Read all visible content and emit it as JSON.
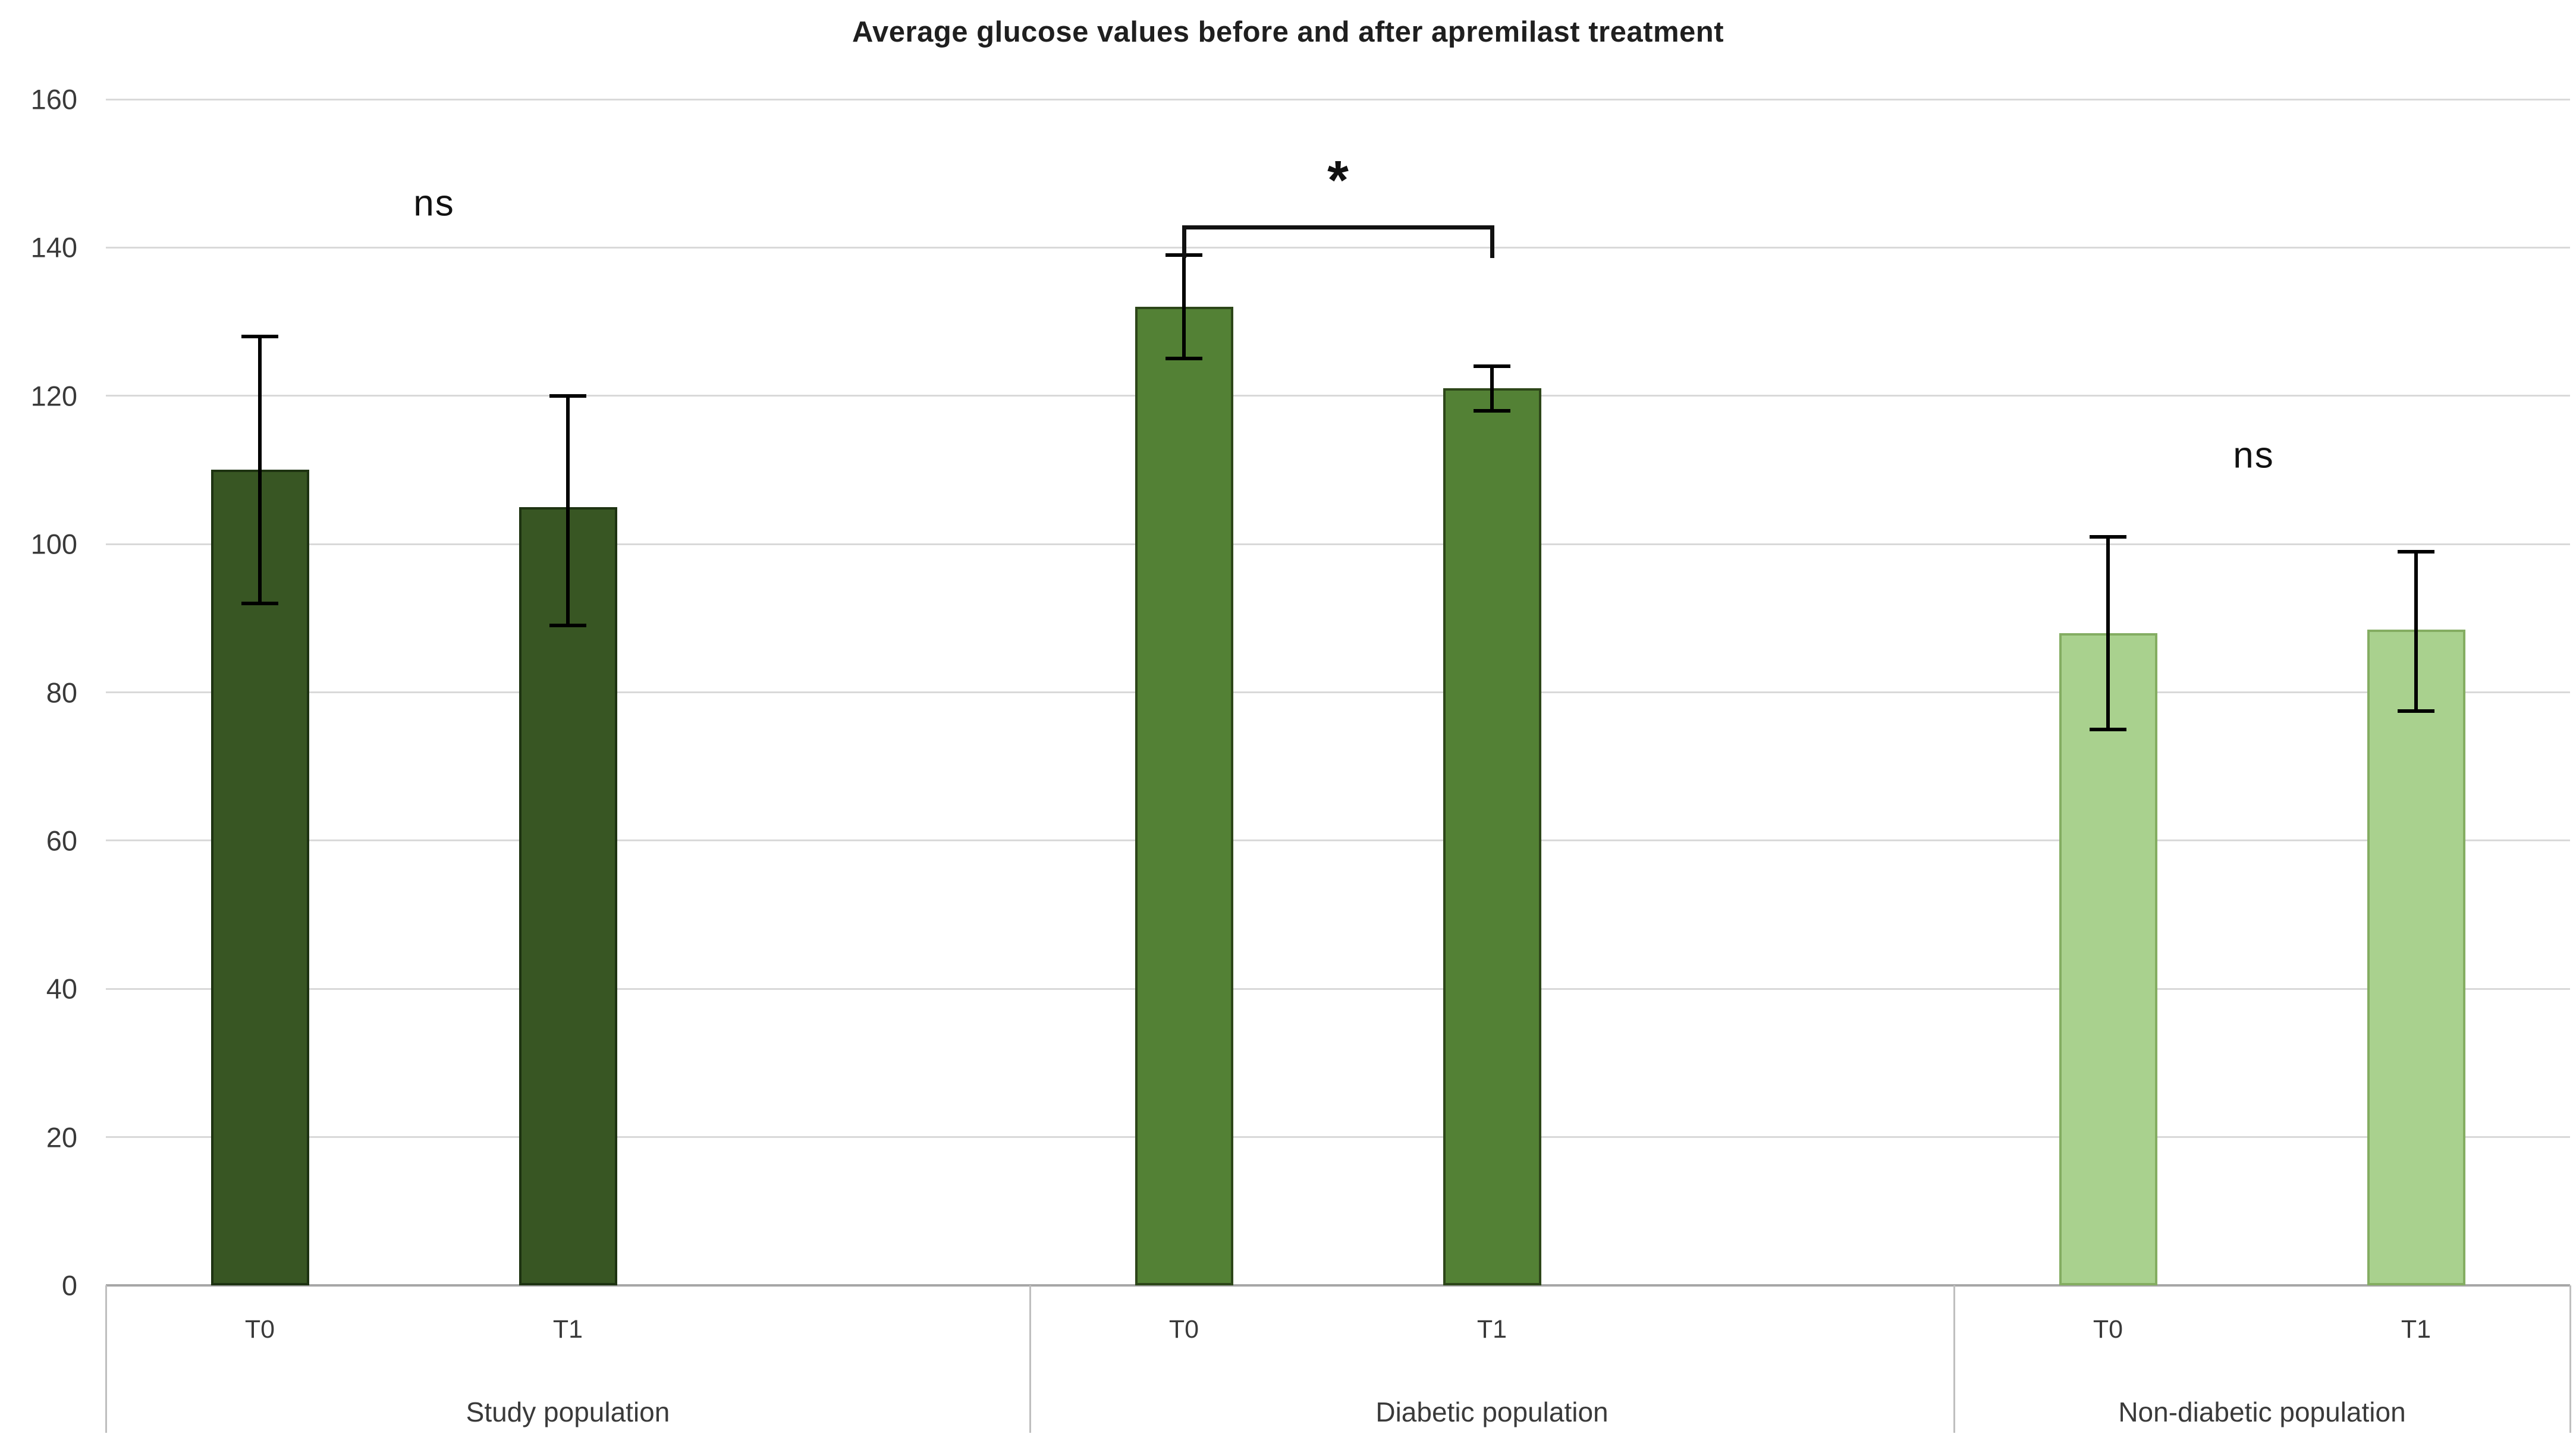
{
  "title": "Average glucose values before and after apremilast treatment",
  "chart_data": {
    "type": "bar",
    "title": "Average glucose values before and after apremilast treatment",
    "ylim": [
      0,
      160
    ],
    "ytick_interval": 20,
    "ytick_labels": [
      "160",
      "140",
      "120",
      "100",
      "80",
      "60",
      "40",
      "20",
      "0"
    ],
    "grid": true,
    "legend": "none",
    "categories": [
      "T0",
      "T1"
    ],
    "groups": [
      {
        "label": "Study population",
        "bar_fill": "#385623",
        "bar_border": "#1e3312",
        "significance": "ns",
        "bars": [
          {
            "category": "T0",
            "value": 110,
            "err_low": 92,
            "err_high": 128
          },
          {
            "category": "T1",
            "value": 105,
            "err_low": 89,
            "err_high": 120
          }
        ]
      },
      {
        "label": "Diabetic population",
        "bar_fill": "#538135",
        "bar_border": "#2d4619",
        "significance": "*",
        "bars": [
          {
            "category": "T0",
            "value": 132,
            "err_low": 125,
            "err_high": 139
          },
          {
            "category": "T1",
            "value": 121,
            "err_low": 118,
            "err_high": 124
          }
        ]
      },
      {
        "label": "Non-diabetic population",
        "bar_fill": "#A9D18E",
        "bar_border": "#84ad62",
        "significance": "ns",
        "bars": [
          {
            "category": "T0",
            "value": 88,
            "err_low": 75,
            "err_high": 101
          },
          {
            "category": "T1",
            "value": 88.5,
            "err_low": 77.5,
            "err_high": 99
          }
        ]
      }
    ],
    "colors": {
      "gridline": "#D9D9D9",
      "axis_line": "#A6A6A6",
      "divider": "#BFBFBF",
      "error_bar": "#000000",
      "title_text": "#1f1f1f",
      "tick_text": "#3a3a3a"
    }
  }
}
